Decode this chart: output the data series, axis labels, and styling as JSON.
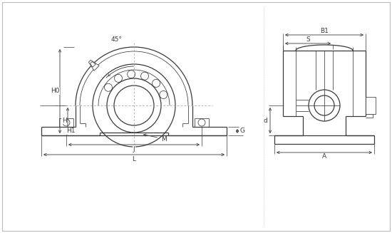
{
  "bg_color": "#ffffff",
  "line_color": "#3a3a3a",
  "dim_color": "#3a3a3a",
  "fig_w": 5.5,
  "fig_h": 3.27,
  "labels": {
    "H0": "H0",
    "H": "H",
    "H1": "H1",
    "J": "J",
    "L": "L",
    "G": "G",
    "M": "M",
    "B1": "B1",
    "S": "S",
    "d": "d",
    "A": "A",
    "angle": "45°"
  },
  "lw_thin": 0.55,
  "lw_med": 0.9,
  "lw_thick": 1.1
}
